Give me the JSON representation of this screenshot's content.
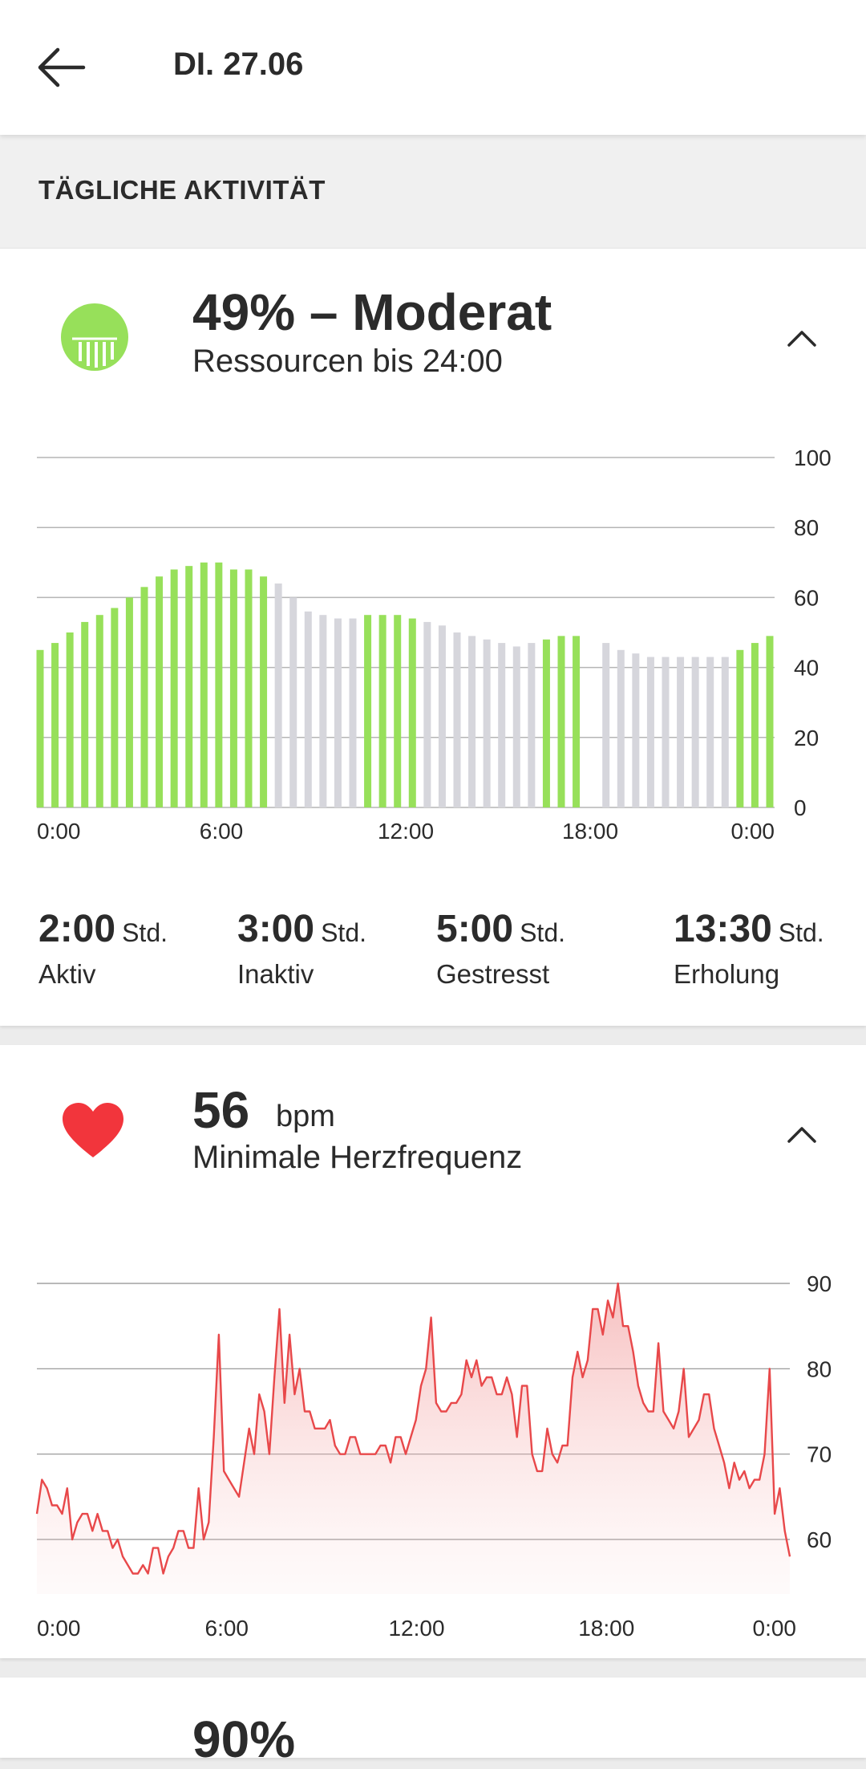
{
  "header": {
    "title": "DI. 27.06",
    "back_icon": "arrow-left-icon"
  },
  "section": {
    "title": "TÄGLICHE AKTIVITÄT"
  },
  "resources": {
    "title": "49% – Moderat",
    "subtitle": "Ressourcen bis 24:00",
    "icon": "resources-gauge-icon",
    "accent": "#97e05a",
    "inactive_color": "#d6d6dc",
    "stats": [
      {
        "value": "2:00",
        "unit": "Std.",
        "label": "Aktiv"
      },
      {
        "value": "3:00",
        "unit": "Std.",
        "label": "Inaktiv"
      },
      {
        "value": "5:00",
        "unit": "Std.",
        "label": "Gestresst"
      },
      {
        "value": "13:30",
        "unit": "Std.",
        "label": "Erholung"
      }
    ]
  },
  "heart": {
    "value": "56",
    "unit": "bpm",
    "subtitle": "Minimale Herzfrequenz",
    "icon": "heart-icon",
    "color": "#e8484a"
  },
  "next_card": {
    "title": "90%"
  },
  "chart_data": [
    {
      "type": "bar",
      "ylim": [
        0,
        100
      ],
      "yticks": [
        "0",
        "20",
        "40",
        "60",
        "80",
        "100"
      ],
      "xticks": [
        "0:00",
        "6:00",
        "12:00",
        "18:00",
        "0:00"
      ],
      "grid": true,
      "values": [
        45,
        47,
        50,
        53,
        55,
        57,
        60,
        63,
        66,
        68,
        69,
        70,
        70,
        68,
        68,
        66,
        64,
        60,
        56,
        55,
        54,
        54,
        55,
        55,
        55,
        54,
        53,
        52,
        50,
        49,
        48,
        47,
        46,
        47,
        48,
        49,
        49,
        null,
        47,
        45,
        44,
        43,
        43,
        43,
        43,
        43,
        43,
        45,
        47,
        49
      ],
      "state": [
        "a",
        "a",
        "a",
        "a",
        "a",
        "a",
        "a",
        "a",
        "a",
        "a",
        "a",
        "a",
        "a",
        "a",
        "a",
        "a",
        "i",
        "i",
        "i",
        "i",
        "i",
        "i",
        "a",
        "a",
        "a",
        "a",
        "i",
        "i",
        "i",
        "i",
        "i",
        "i",
        "i",
        "i",
        "a",
        "a",
        "a",
        "i",
        null,
        "i",
        "i",
        "i",
        "i",
        "i",
        "i",
        "i",
        "i",
        "a",
        "a",
        "a"
      ],
      "legend": {
        "a": "active",
        "i": "inactive"
      }
    },
    {
      "type": "area",
      "ylim": [
        54,
        90
      ],
      "yticks": [
        "60",
        "70",
        "80",
        "90"
      ],
      "xticks": [
        "0:00",
        "6:00",
        "12:00",
        "18:00",
        "0:00"
      ],
      "grid": true,
      "values": [
        63,
        67,
        66,
        64,
        64,
        63,
        66,
        60,
        62,
        63,
        63,
        61,
        63,
        61,
        61,
        59,
        60,
        58,
        57,
        56,
        56,
        57,
        56,
        59,
        59,
        56,
        58,
        59,
        61,
        61,
        59,
        59,
        66,
        60,
        62,
        72,
        84,
        68,
        67,
        66,
        65,
        69,
        73,
        70,
        77,
        75,
        70,
        79,
        87,
        76,
        84,
        77,
        80,
        75,
        75,
        73,
        73,
        73,
        74,
        71,
        70,
        70,
        72,
        72,
        70,
        70,
        70,
        70,
        71,
        71,
        69,
        72,
        72,
        70,
        72,
        74,
        78,
        80,
        86,
        76,
        75,
        75,
        76,
        76,
        77,
        81,
        79,
        81,
        78,
        79,
        79,
        77,
        77,
        79,
        77,
        72,
        78,
        78,
        70,
        68,
        68,
        73,
        70,
        69,
        71,
        71,
        79,
        82,
        79,
        81,
        87,
        87,
        84,
        88,
        86,
        90,
        85,
        85,
        82,
        78,
        76,
        75,
        75,
        83,
        75,
        74,
        73,
        75,
        80,
        72,
        73,
        74,
        77,
        77,
        73,
        71,
        69,
        66,
        69,
        67,
        68,
        66,
        67,
        67,
        70,
        80,
        63,
        66,
        61,
        58
      ]
    }
  ]
}
